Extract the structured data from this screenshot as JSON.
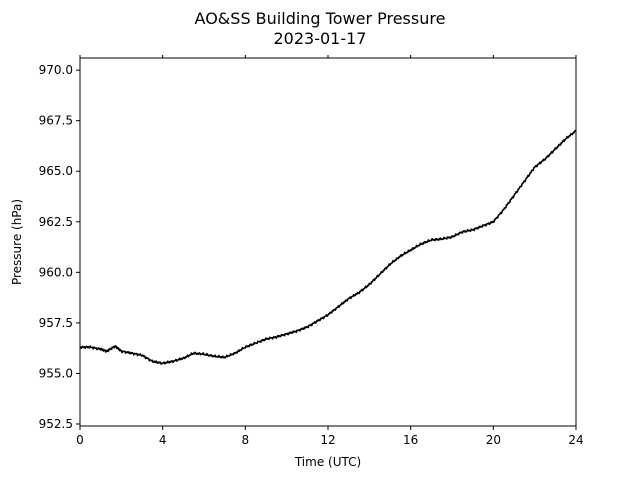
{
  "chart_data": {
    "type": "line",
    "title": "AO&SS Building Tower Pressure",
    "subtitle": "2023-01-17",
    "xlabel": "Time (UTC)",
    "ylabel": "Pressure (hPa)",
    "xlim": [
      0,
      24
    ],
    "ylim": [
      952.4,
      970.6
    ],
    "xticks": [
      0,
      4,
      8,
      12,
      16,
      20,
      24
    ],
    "xtick_labels": [
      "0",
      "4",
      "8",
      "12",
      "16",
      "20",
      "24"
    ],
    "yticks": [
      952.5,
      955.0,
      957.5,
      960.0,
      962.5,
      965.0,
      967.5,
      970.0
    ],
    "ytick_labels": [
      "952.5",
      "955.0",
      "957.5",
      "960.0",
      "962.5",
      "965.0",
      "967.5",
      "970.0"
    ],
    "grid": false,
    "series": [
      {
        "color": "#000000",
        "x": [
          0,
          0.5,
          1.0,
          1.3,
          1.7,
          2.0,
          2.5,
          3.0,
          3.5,
          4.0,
          4.5,
          5.0,
          5.5,
          6.0,
          6.5,
          7.0,
          7.5,
          8.0,
          8.5,
          9.0,
          9.5,
          10.0,
          10.5,
          11.0,
          11.5,
          12.0,
          12.5,
          13.0,
          13.5,
          14.0,
          14.5,
          15.0,
          15.5,
          16.0,
          16.5,
          17.0,
          17.5,
          18.0,
          18.5,
          19.0,
          19.5,
          20.0,
          20.5,
          21.0,
          21.5,
          22.0,
          22.5,
          23.0,
          23.5,
          24.0
        ],
        "y": [
          956.3,
          956.3,
          956.2,
          956.1,
          956.35,
          956.1,
          956.0,
          955.9,
          955.6,
          955.5,
          955.6,
          955.75,
          956.0,
          955.95,
          955.85,
          955.8,
          956.0,
          956.3,
          956.5,
          956.7,
          956.8,
          956.95,
          957.1,
          957.3,
          957.6,
          957.9,
          958.3,
          958.7,
          959.0,
          959.4,
          959.9,
          960.4,
          960.8,
          961.1,
          961.4,
          961.6,
          961.65,
          961.75,
          962.0,
          962.1,
          962.3,
          962.5,
          963.1,
          963.8,
          964.5,
          965.2,
          965.6,
          966.1,
          966.6,
          967.0
        ]
      }
    ]
  }
}
